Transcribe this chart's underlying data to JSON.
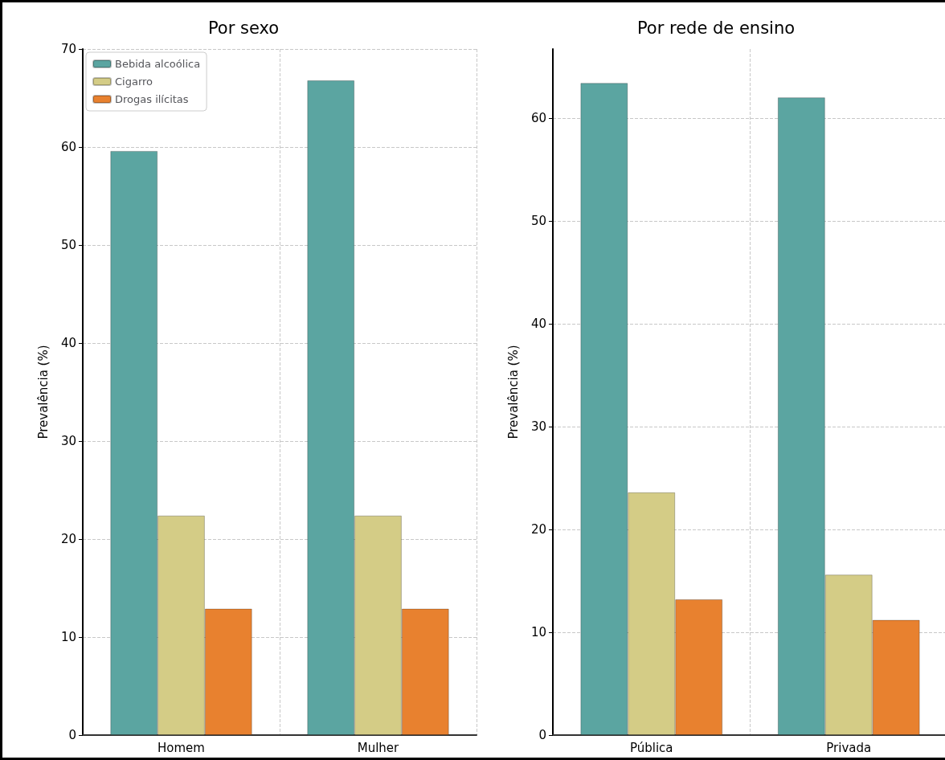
{
  "chart_data": [
    {
      "type": "bar",
      "title": "Por sexo",
      "ylabel": "Prevalência (%)",
      "categories": [
        "Homem",
        "Mulher"
      ],
      "series": [
        {
          "name": "Bebida alcoólica",
          "color": "#5ba5a1",
          "values": [
            59.6,
            66.8
          ]
        },
        {
          "name": "Cigarro",
          "color": "#d4cc86",
          "values": [
            22.4,
            22.4
          ]
        },
        {
          "name": "Drogas ilícitas",
          "color": "#e8812f",
          "values": [
            12.9,
            12.9
          ]
        }
      ],
      "ylim": [
        0,
        70
      ],
      "yticks": [
        0,
        10,
        20,
        30,
        40,
        50,
        60,
        70
      ],
      "grid": true,
      "legend": "top left"
    },
    {
      "type": "bar",
      "title": "Por rede de ensino",
      "ylabel": "Prevalência (%)",
      "categories": [
        "Pública",
        "Privada"
      ],
      "series": [
        {
          "color": "#5ba5a1",
          "values": [
            63.4,
            62.0
          ]
        },
        {
          "color": "#d4cc86",
          "values": [
            23.6,
            15.6
          ]
        },
        {
          "color": "#e8812f",
          "values": [
            13.2,
            11.2
          ]
        }
      ],
      "ylim": [
        0,
        66.7
      ],
      "yticks": [
        0,
        10,
        20,
        30,
        40,
        50,
        60
      ],
      "grid": true
    }
  ]
}
